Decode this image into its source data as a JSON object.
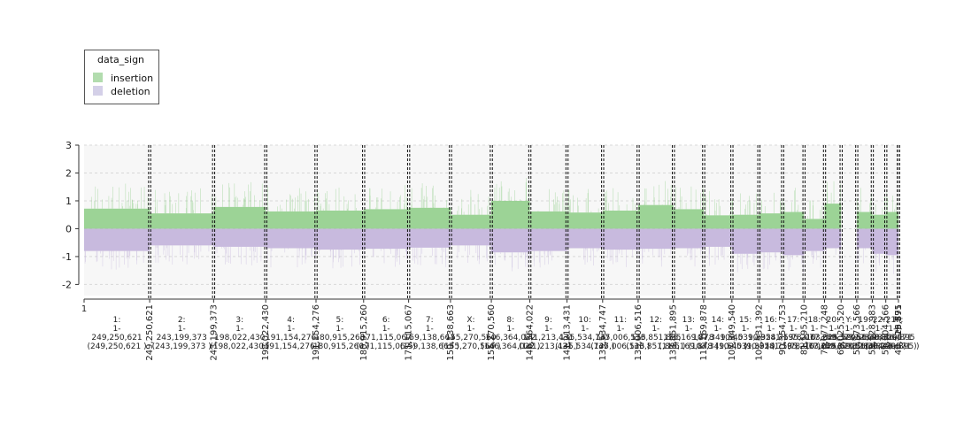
{
  "legend": {
    "title": "data_sign",
    "items": [
      {
        "label": "insertion",
        "color": "#b2dcae"
      },
      {
        "label": "deletion",
        "color": "#d4d0e8"
      }
    ]
  },
  "chart_data": {
    "type": "area",
    "title": "",
    "xlabel": "",
    "ylabel": "",
    "ylim": [
      -2.4,
      3
    ],
    "y_ticks": [
      -2,
      -1,
      0,
      1,
      2,
      3
    ],
    "grid": true,
    "legend_position": "top-left",
    "colors": {
      "insertion": "#8ccd85",
      "deletion": "#c2b3da",
      "background": "#f7f7f7"
    },
    "start_label": "1",
    "series": [
      {
        "name": "insertion",
        "color": "#8ccd85"
      },
      {
        "name": "deletion",
        "color": "#c2b3da"
      }
    ],
    "chromosomes": [
      {
        "name": "1",
        "length": 249250621,
        "label": "1:\n1-\n249,250,621\n(249,250,621 )",
        "end_tick": "249,250,621",
        "ins": 0.72,
        "del": -0.8
      },
      {
        "name": "2",
        "length": 243199373,
        "label": "2:\n1-\n243,199,373\n(243,199,373 )",
        "end_tick": "243,199,373",
        "ins": 0.55,
        "del": -0.6
      },
      {
        "name": "3",
        "length": 198022430,
        "label": "3:\n1-\n198,022,430\n(198,022,430 )",
        "end_tick": "198,022,430",
        "ins": 0.78,
        "del": -0.65
      },
      {
        "name": "4",
        "length": 191154276,
        "label": "4:\n1-\n191,154,276\n(191,154,276 )",
        "end_tick": "191,154,276",
        "ins": 0.62,
        "del": -0.7
      },
      {
        "name": "5",
        "length": 180915260,
        "label": "5:\n1-\n180,915,260\n(180,915,260 )",
        "end_tick": "180,915,260",
        "ins": 0.65,
        "del": -0.75
      },
      {
        "name": "6",
        "length": 171115067,
        "label": "6:\n1-\n171,115,067\n(171,115,067 )",
        "end_tick": "171,115,067",
        "ins": 0.7,
        "del": -0.72
      },
      {
        "name": "7",
        "length": 159138663,
        "label": "7:\n1-\n159,138,663\n(159,138,663 )",
        "end_tick": "159,138,663",
        "ins": 0.75,
        "del": -0.68
      },
      {
        "name": "X",
        "length": 155270560,
        "label": "X:\n1-\n155,270,560\n(155,270,560 )",
        "end_tick": "155,270,560",
        "ins": 0.5,
        "del": -0.6
      },
      {
        "name": "8",
        "length": 146364022,
        "label": "8:\n1-\n146,364,022\n(146,364,022 )",
        "end_tick": "146,364,022",
        "ins": 1.0,
        "del": -0.85
      },
      {
        "name": "9",
        "length": 141213431,
        "label": "9:\n1-\n141,213,431\n(141,213,431 )",
        "end_tick": "141,213,431",
        "ins": 0.62,
        "del": -0.8
      },
      {
        "name": "10",
        "length": 135534747,
        "label": "10:\n1-\n135,534,747\n(135,534,747 )",
        "end_tick": "135,534,747",
        "ins": 0.58,
        "del": -0.7
      },
      {
        "name": "11",
        "length": 135006516,
        "label": "11:\n1-\n135,006,516\n(135,006,516 )",
        "end_tick": "135,006,516",
        "ins": 0.65,
        "del": -0.75
      },
      {
        "name": "12",
        "length": 133851895,
        "label": "12:\n1-\n133,851,895\n(133,851,895 )",
        "end_tick": "133,851,895",
        "ins": 0.85,
        "del": -0.72
      },
      {
        "name": "13",
        "length": 115169878,
        "label": "13:\n1-\n115,169,878\n(115,169,878 )",
        "end_tick": "115,169,878",
        "ins": 0.7,
        "del": -0.7
      },
      {
        "name": "14",
        "length": 107349540,
        "label": "14:\n1-\n107,349,540\n(107,349,540 )",
        "end_tick": "107,349,540",
        "ins": 0.48,
        "del": -0.65
      },
      {
        "name": "15",
        "length": 102531392,
        "label": "15:\n1-\n102,531,392\n(102,531,392 )",
        "end_tick": "102,531,392",
        "ins": 0.5,
        "del": -0.9
      },
      {
        "name": "16",
        "length": 90354753,
        "label": "16:\n1-\n90,354,753\n(90,354,753 )",
        "end_tick": "90,354,753",
        "ins": 0.55,
        "del": -0.85
      },
      {
        "name": "17",
        "length": 81195210,
        "label": "17:\n1-\n81,195,210\n(81,195,210 )",
        "end_tick": "81,195,210",
        "ins": 0.6,
        "del": -0.95
      },
      {
        "name": "18",
        "length": 78077248,
        "label": "18:\n1-\n78,077,248\n(78,077,248 )",
        "end_tick": "78,077,248",
        "ins": 0.35,
        "del": -0.8
      },
      {
        "name": "20",
        "length": 63025520,
        "label": "20:\n1-\n63,025,520\n(63,025,520 )",
        "end_tick": "63,025,520",
        "ins": 0.9,
        "del": -0.7
      },
      {
        "name": "Y",
        "length": 59373566,
        "label": "Y:\n1-\n59,373,566\n(59,373,566 )",
        "end_tick": "59,373,566",
        "ins": 0.0,
        "del": 0.0
      },
      {
        "name": "19",
        "length": 59128983,
        "label": "19:\n1-\n59,128,983\n(59,128,983 )",
        "end_tick": "59,128,983",
        "ins": 0.6,
        "del": -0.7
      },
      {
        "name": "22",
        "length": 51304566,
        "label": "22:\n1-\n51,304,566\n(51,304,566 )",
        "end_tick": "51,304,566",
        "ins": 0.5,
        "del": -0.9
      },
      {
        "name": "21",
        "length": 48129895,
        "label": "21:\n1-\n48,129,895\n(48,129,895 )",
        "end_tick": "48,129,895",
        "ins": 0.6,
        "del": -0.95
      },
      {
        "name": "M",
        "length": 16571,
        "label": "M:\n1-\n16,571\n(16,571 )",
        "end_tick": "16,571",
        "ins": 0.0,
        "del": 0.0
      }
    ]
  }
}
